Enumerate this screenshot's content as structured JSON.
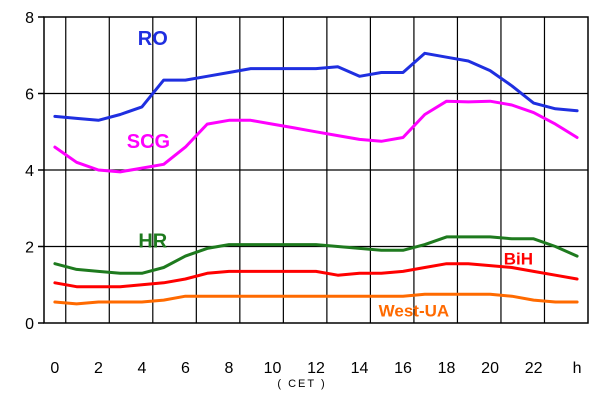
{
  "chart_data": {
    "type": "line",
    "xlabel": "( CET )",
    "x_unit_label": "h",
    "x_ticks": [
      0,
      2,
      4,
      6,
      8,
      10,
      12,
      14,
      16,
      18,
      20,
      22
    ],
    "xlim": [
      -0.5,
      24.5
    ],
    "y_ticks": [
      0,
      2,
      4,
      6,
      8
    ],
    "ylim": [
      0,
      8
    ],
    "grid": true,
    "x": [
      0,
      1,
      2,
      3,
      4,
      5,
      6,
      7,
      8,
      9,
      10,
      11,
      12,
      13,
      14,
      15,
      16,
      17,
      18,
      19,
      20,
      21,
      22,
      23,
      24
    ],
    "series": [
      {
        "name": "RO",
        "color": "#1f2fe0",
        "values": [
          5.4,
          5.35,
          5.3,
          5.45,
          5.65,
          6.35,
          6.35,
          6.45,
          6.55,
          6.65,
          6.65,
          6.65,
          6.65,
          6.7,
          6.45,
          6.55,
          6.55,
          7.05,
          6.95,
          6.85,
          6.6,
          6.2,
          5.75,
          5.6,
          5.55
        ]
      },
      {
        "name": "SCG",
        "color": "#ff00ff",
        "values": [
          4.6,
          4.2,
          4.0,
          3.95,
          4.05,
          4.15,
          4.6,
          5.2,
          5.3,
          5.3,
          5.2,
          5.1,
          5.0,
          4.9,
          4.8,
          4.75,
          4.85,
          5.45,
          5.8,
          5.78,
          5.8,
          5.7,
          5.5,
          5.2,
          4.85
        ]
      },
      {
        "name": "HR",
        "color": "#1e7a1e",
        "values": [
          1.55,
          1.4,
          1.35,
          1.3,
          1.3,
          1.45,
          1.75,
          1.95,
          2.05,
          2.05,
          2.05,
          2.05,
          2.05,
          2.0,
          1.95,
          1.9,
          1.9,
          2.05,
          2.25,
          2.25,
          2.25,
          2.2,
          2.2,
          2.0,
          1.75
        ]
      },
      {
        "name": "BiH",
        "color": "#ff0000",
        "values": [
          1.05,
          0.95,
          0.95,
          0.95,
          1.0,
          1.05,
          1.15,
          1.3,
          1.35,
          1.35,
          1.35,
          1.35,
          1.35,
          1.25,
          1.3,
          1.3,
          1.35,
          1.45,
          1.55,
          1.55,
          1.5,
          1.45,
          1.35,
          1.25,
          1.15
        ]
      },
      {
        "name": "West-UA",
        "color": "#ff6a00",
        "values": [
          0.55,
          0.5,
          0.55,
          0.55,
          0.55,
          0.6,
          0.7,
          0.7,
          0.7,
          0.7,
          0.7,
          0.7,
          0.7,
          0.7,
          0.7,
          0.7,
          0.7,
          0.75,
          0.75,
          0.75,
          0.75,
          0.7,
          0.6,
          0.55,
          0.55
        ]
      }
    ]
  }
}
